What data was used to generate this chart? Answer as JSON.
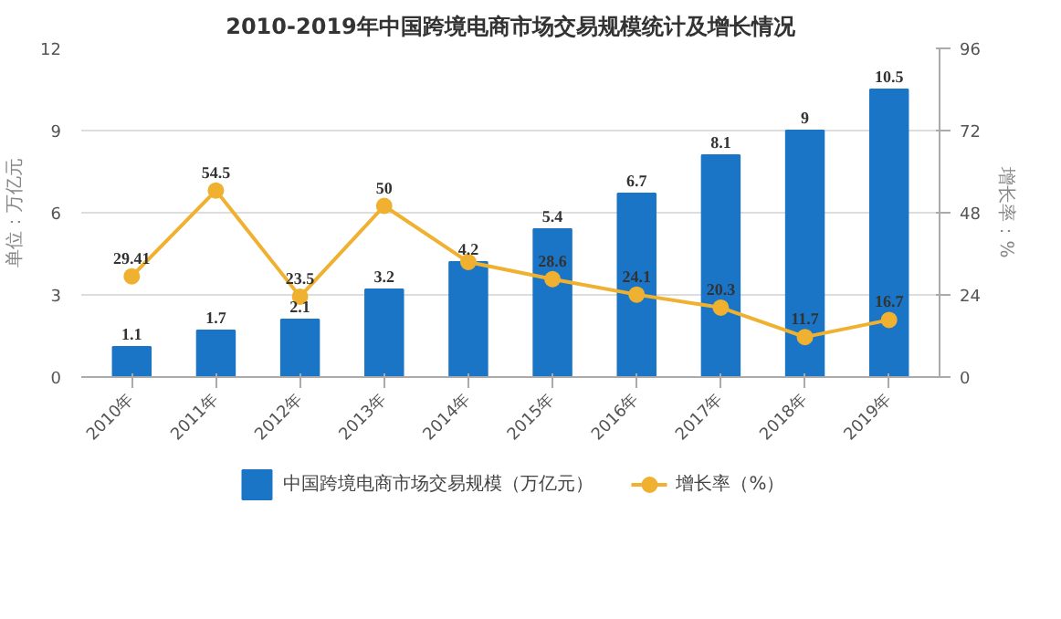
{
  "chart_data": {
    "type": "bar",
    "title": "2010-2019年中国跨境电商市场交易规模统计及增长情况",
    "categories": [
      "2010年",
      "2011年",
      "2012年",
      "2013年",
      "2014年",
      "2015年",
      "2016年",
      "2017年",
      "2018年",
      "2019年"
    ],
    "ylabel": "单位：万亿元",
    "y2label": "增长率：%",
    "ylim": [
      0,
      12
    ],
    "yticks": [
      0,
      3,
      6,
      9,
      12
    ],
    "y2lim": [
      0,
      96
    ],
    "y2ticks": [
      0,
      24,
      48,
      72,
      96
    ],
    "grid": "y",
    "legend": "bottom",
    "series": [
      {
        "name": "中国跨境电商市场交易规模（万亿元）",
        "type": "bar",
        "color": "#1a75c6",
        "values": [
          1.1,
          1.7,
          2.1,
          3.2,
          4.2,
          5.4,
          6.7,
          8.1,
          9,
          10.5
        ],
        "value_labels": [
          "1.1",
          "1.7",
          "2.1",
          "3.2",
          "4.2",
          "5.4",
          "6.7",
          "8.1",
          "9",
          "10.5"
        ]
      },
      {
        "name": "增长率（%）",
        "type": "line",
        "axis": "y2",
        "color": "#f0b030",
        "marker": "circle",
        "values": [
          29.41,
          54.5,
          23.5,
          50,
          33.6,
          28.6,
          24.1,
          20.3,
          11.7,
          16.7
        ],
        "value_labels": [
          "29.41",
          "54.5",
          "23.5",
          "50",
          null,
          "28.6",
          "24.1",
          "20.3",
          "11.7",
          "16.7"
        ]
      }
    ]
  }
}
